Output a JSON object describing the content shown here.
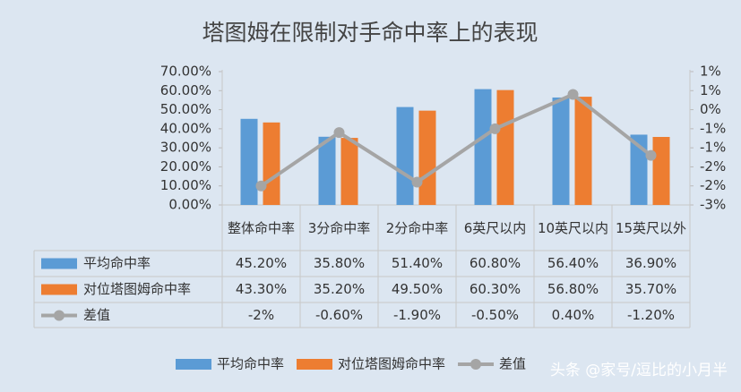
{
  "chart_data": {
    "type": "bar",
    "title": "塔图姆在限制对手命中率上的表现",
    "categories": [
      "整体命中率",
      "3分命中率",
      "2分命中率",
      "6英尺以内",
      "10英尺以内",
      "15英尺以外"
    ],
    "series": [
      {
        "name": "平均命中率",
        "color": "#5b9bd5",
        "type": "bar",
        "values": [
          45.2,
          35.8,
          51.4,
          60.8,
          56.4,
          36.9
        ],
        "value_labels": [
          "45.20%",
          "35.80%",
          "51.40%",
          "60.80%",
          "56.40%",
          "36.90%"
        ]
      },
      {
        "name": "对位塔图姆命中率",
        "color": "#ed7d31",
        "type": "bar",
        "values": [
          43.3,
          35.2,
          49.5,
          60.3,
          56.8,
          35.7
        ],
        "value_labels": [
          "43.30%",
          "35.20%",
          "49.50%",
          "60.30%",
          "56.80%",
          "35.70%"
        ]
      },
      {
        "name": "差值",
        "color": "#a5a5a5",
        "type": "line",
        "axis": "y2",
        "values": [
          -2,
          -0.6,
          -1.9,
          -0.5,
          0.4,
          -1.2
        ],
        "value_labels": [
          "-2%",
          "-0.60%",
          "-1.90%",
          "-0.50%",
          "0.40%",
          "-1.20%"
        ]
      }
    ],
    "ylim": [
      0,
      70
    ],
    "yticks": [
      {
        "value": 0,
        "label": "0.00%"
      },
      {
        "value": 10,
        "label": "10.00%"
      },
      {
        "value": 20,
        "label": "20.00%"
      },
      {
        "value": 30,
        "label": "30.00%"
      },
      {
        "value": 40,
        "label": "40.00%"
      },
      {
        "value": 50,
        "label": "50.00%"
      },
      {
        "value": 60,
        "label": "60.00%"
      },
      {
        "value": 70,
        "label": "70.00%"
      }
    ],
    "y2lim": [
      -2.5,
      1
    ],
    "y2ticks": [
      {
        "value": -2.5,
        "label": "-3%"
      },
      {
        "value": -2,
        "label": "-2%"
      },
      {
        "value": -1.5,
        "label": "-2%"
      },
      {
        "value": -1,
        "label": "-1%"
      },
      {
        "value": -0.5,
        "label": "-1%"
      },
      {
        "value": 0,
        "label": "0%"
      },
      {
        "value": 0.5,
        "label": "1%"
      },
      {
        "value": 1,
        "label": "1%"
      }
    ],
    "data_table": true,
    "legend": "bottom",
    "watermark": "头条 @家号/逗比的小月半"
  }
}
